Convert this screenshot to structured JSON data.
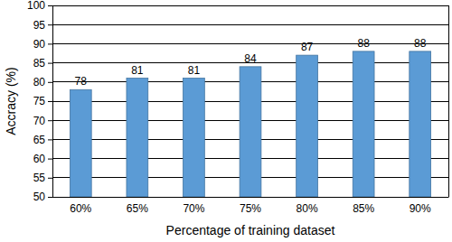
{
  "chart_data": {
    "type": "bar",
    "x_label": "Percentage of training dataset",
    "y_label": "Accracy (%)",
    "categories": [
      "60%",
      "65%",
      "70%",
      "75%",
      "80%",
      "85%",
      "90%"
    ],
    "values": [
      78,
      81,
      81,
      84,
      87,
      88,
      88
    ],
    "color": "#5b9bd5",
    "ylim": [
      50,
      100
    ],
    "yticks": [
      50,
      55,
      60,
      65,
      70,
      75,
      80,
      85,
      90,
      95,
      100
    ],
    "grid": true,
    "data_labels": true
  }
}
